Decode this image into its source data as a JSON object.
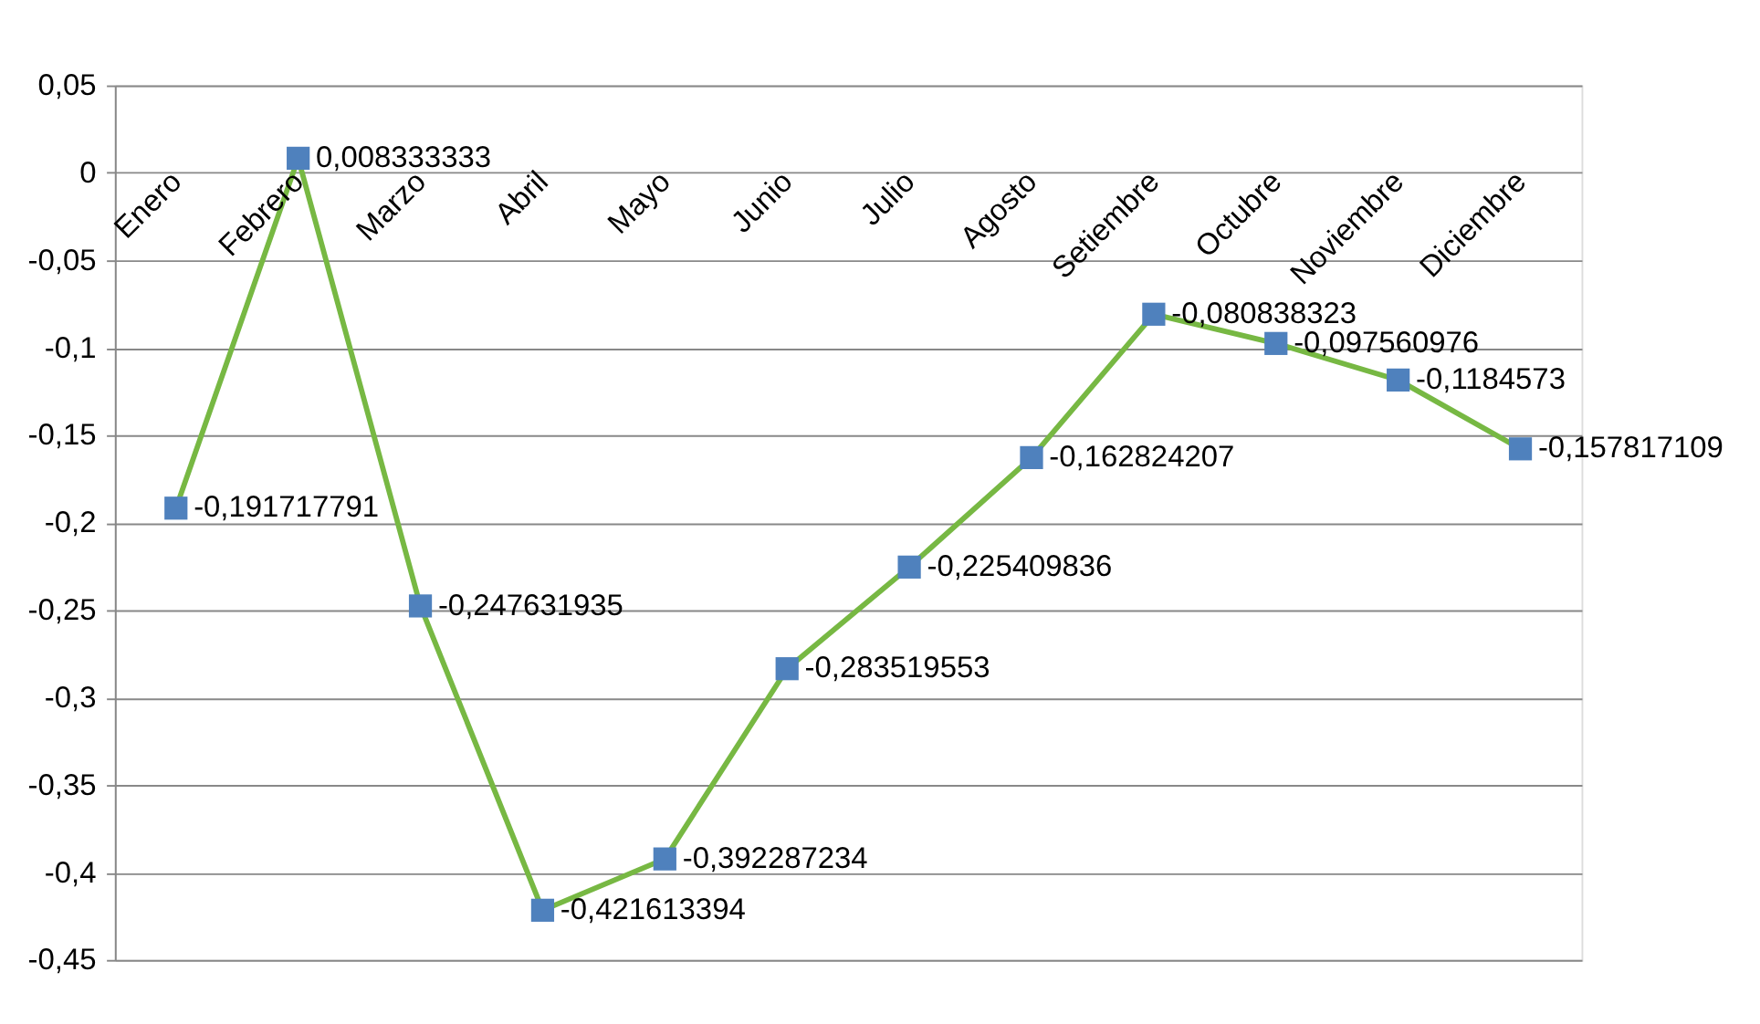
{
  "chart_data": {
    "type": "line",
    "categories": [
      "Enero",
      "Febrero",
      "Marzo",
      "Abril",
      "Mayo",
      "Junio",
      "Julio",
      "Agosto",
      "Setiembre",
      "Octubre",
      "Noviembre",
      "Diciembre"
    ],
    "series": [
      {
        "color": "#77b843",
        "colors": [
          "#4f81bd",
          "#4f81bd",
          "#4f81bd",
          "#4f81bd",
          "#4f81bd",
          "#4f81bd",
          "#4f81bd",
          "#4f81bd",
          "#4f81bd",
          "#4f81bd",
          "#4f81bd",
          "#4f81bd"
        ],
        "values": [
          -0.191717791,
          0.008333333,
          -0.247631935,
          -0.421613394,
          -0.392287234,
          -0.283519553,
          -0.225409836,
          -0.162824207,
          -0.080838323,
          -0.097560976,
          -0.1184573,
          -0.157817109
        ],
        "value_labels": [
          "-0,191717791",
          "0,008333333",
          "-0,247631935",
          "-0,421613394",
          "-0,392287234",
          "-0,283519553",
          "-0,225409836",
          "-0,162824207",
          "-0,080838323",
          "-0,097560976",
          "-0,1184573",
          "-0,157817109"
        ]
      }
    ],
    "ylim": [
      -0.45,
      0.05
    ],
    "yticks": [
      {
        "value": 0.05,
        "label": "0,05"
      },
      0,
      {
        "value": -0.05,
        "label": "-0,05"
      },
      {
        "value": -0.1,
        "label": "-0,1"
      },
      {
        "value": -0.15,
        "label": "-0,15"
      },
      {
        "value": -0.2,
        "label": "-0,2"
      },
      {
        "value": -0.25,
        "label": "-0,25"
      },
      {
        "value": -0.3,
        "label": "-0,3"
      },
      {
        "value": -0.35,
        "label": "-0,35"
      },
      {
        "value": -0.4,
        "label": "-0,4"
      },
      {
        "value": -0.45,
        "label": "-0,45"
      }
    ],
    "grid": "y",
    "marker": "square",
    "line_style": "solid"
  }
}
